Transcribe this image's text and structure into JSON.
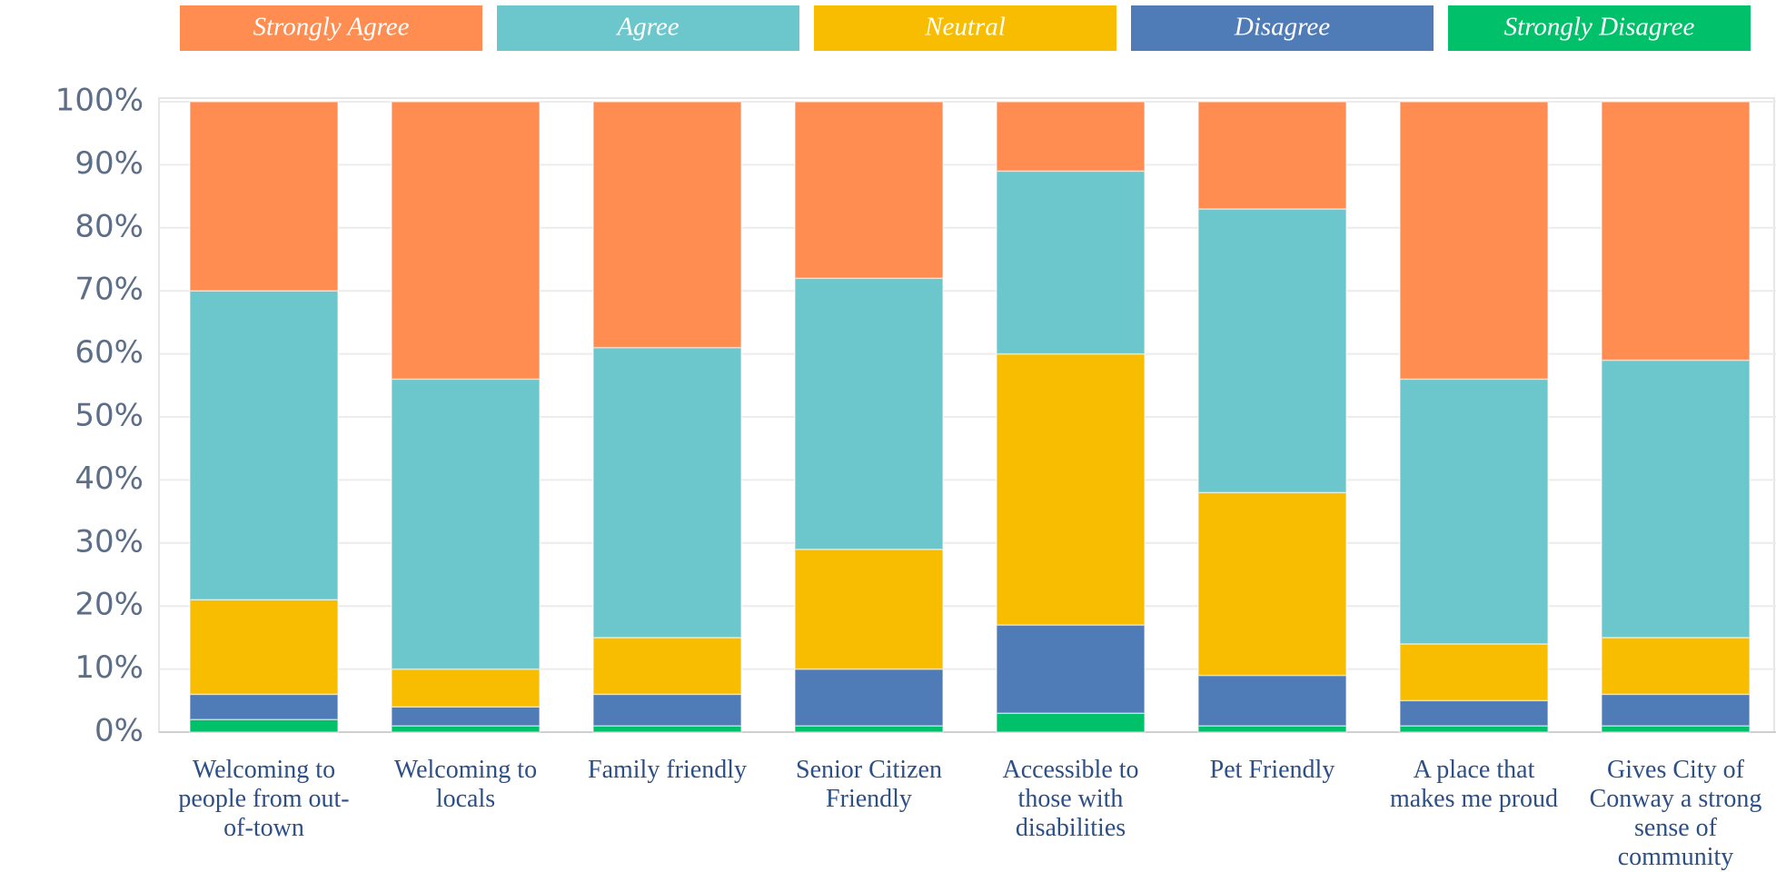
{
  "chart_data": {
    "type": "stacked_bar",
    "categories": [
      "Welcoming to people from out-of-town",
      "Welcoming to locals",
      "Family friendly",
      "Senior Citizen Friendly",
      "Accessible to those with disabilities",
      "Pet Friendly",
      "A place that makes me proud",
      "Gives City of Conway a strong sense of community"
    ],
    "series": [
      {
        "name": "Strongly Agree",
        "color": "#ff8c50",
        "values": [
          30,
          44,
          39,
          28,
          11,
          17,
          44,
          41
        ]
      },
      {
        "name": "Agree",
        "color": "#6bc7cc",
        "values": [
          49,
          46,
          46,
          43,
          29,
          45,
          42,
          44
        ]
      },
      {
        "name": "Neutral",
        "color": "#f8bd00",
        "values": [
          15,
          6,
          9,
          19,
          43,
          29,
          9,
          9
        ]
      },
      {
        "name": "Disagree",
        "color": "#4f7cb7",
        "values": [
          4,
          3,
          5,
          9,
          14,
          8,
          4,
          5
        ]
      },
      {
        "name": "Strongly Disagree",
        "color": "#00c06a",
        "values": [
          2,
          1,
          1,
          1,
          3,
          1,
          1,
          1
        ]
      }
    ],
    "ylim": [
      0,
      100
    ],
    "yticks": [
      {
        "value": 0,
        "label": "0%"
      },
      {
        "value": 10,
        "label": "10%"
      },
      {
        "value": 20,
        "label": "20%"
      },
      {
        "value": 30,
        "label": "30%"
      },
      {
        "value": 40,
        "label": "40%"
      },
      {
        "value": 50,
        "label": "50%"
      },
      {
        "value": 60,
        "label": "60%"
      },
      {
        "value": 70,
        "label": "70%"
      },
      {
        "value": 80,
        "label": "80%"
      },
      {
        "value": 90,
        "label": "90%"
      },
      {
        "value": 100,
        "label": "100%"
      }
    ],
    "grid": true,
    "legend": "top"
  }
}
